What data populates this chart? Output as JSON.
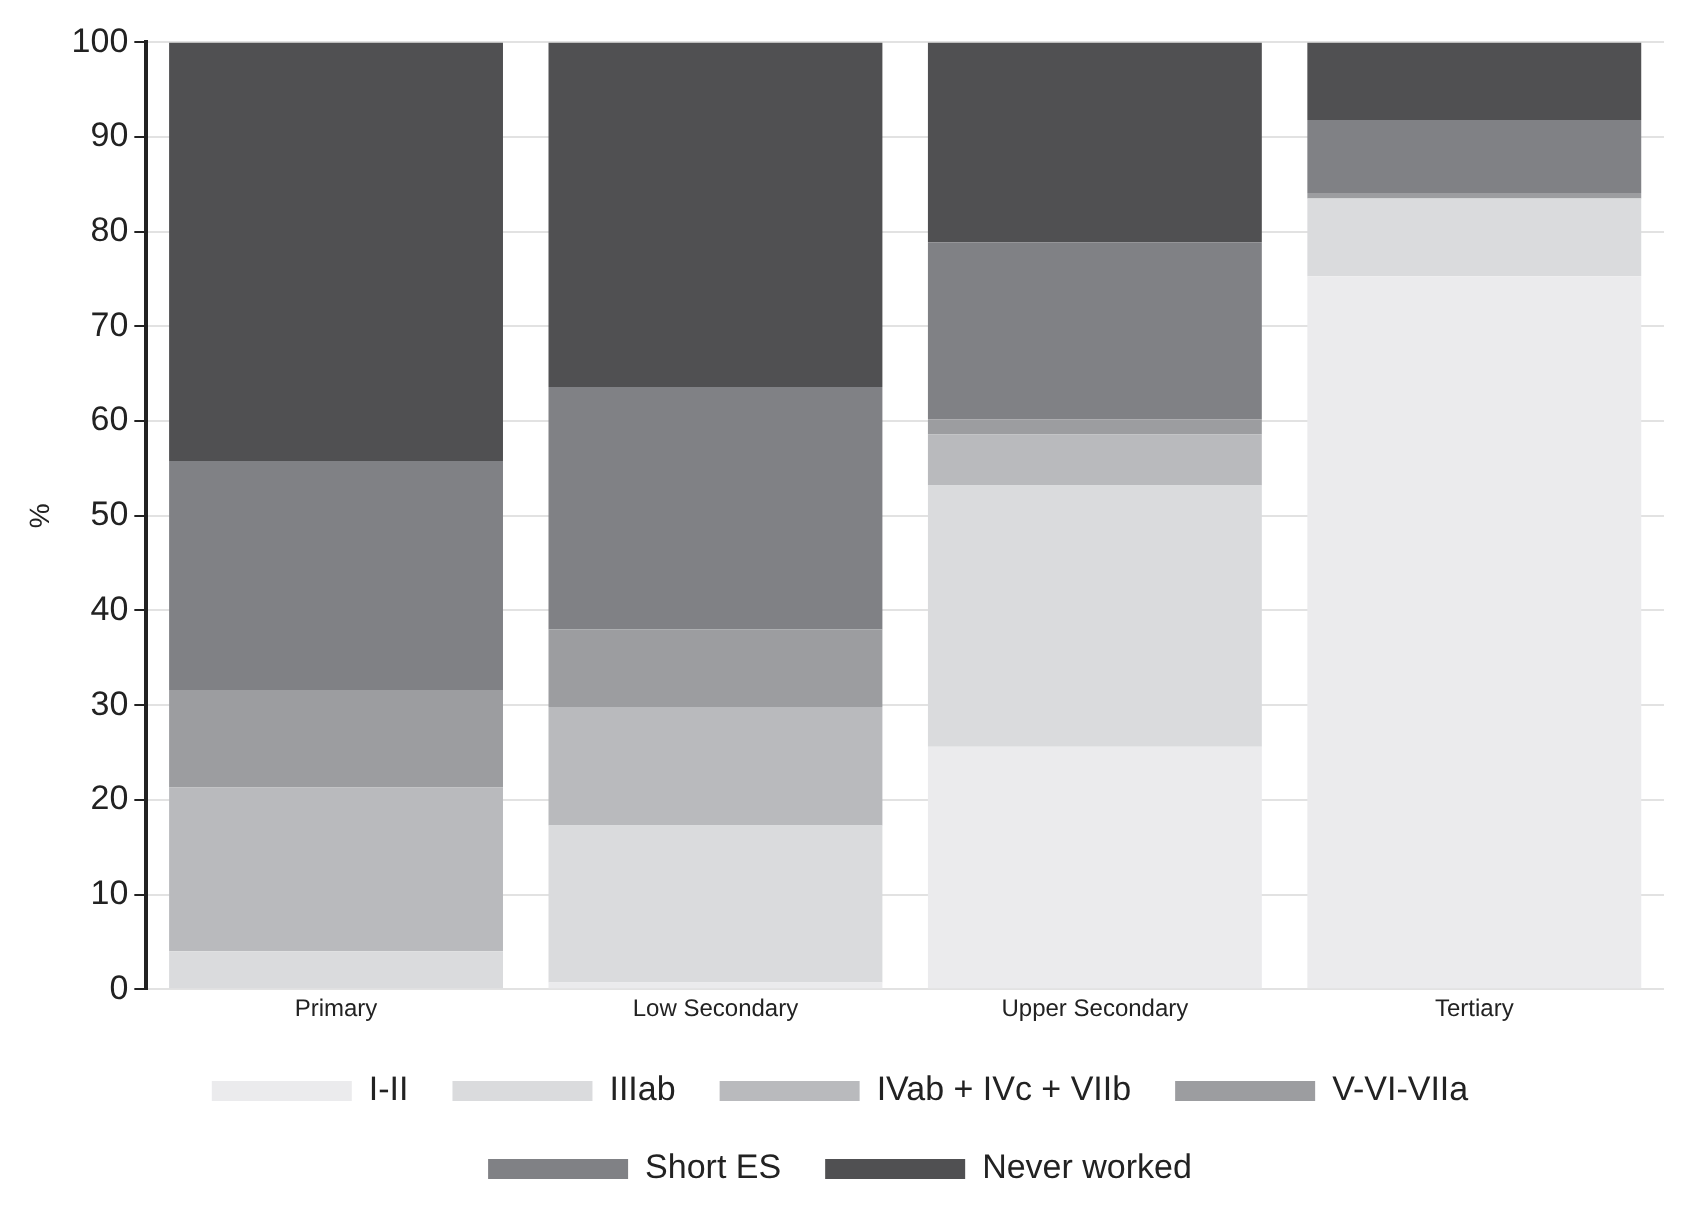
{
  "chart_data": {
    "type": "bar",
    "stacked": true,
    "ylabel": "%",
    "categories": [
      "Primary",
      "Low Secondary",
      "Upper Secondary",
      "Tertiary"
    ],
    "series": [
      {
        "name": "I-II",
        "color": "#ebebed",
        "values": [
          0,
          0.7,
          25.6,
          75.3
        ]
      },
      {
        "name": "IIIab",
        "color": "#dadbdd",
        "values": [
          4.0,
          16.6,
          27.6,
          8.2
        ]
      },
      {
        "name": "IVab + IVc + VIIb",
        "color": "#b9babd",
        "values": [
          17.3,
          12.5,
          5.4,
          0
        ]
      },
      {
        "name": "V-VI-VIIa",
        "color": "#9c9da0",
        "values": [
          10.3,
          8.2,
          1.6,
          0.6
        ]
      },
      {
        "name": "Short ES",
        "color": "#808185",
        "values": [
          24.2,
          25.6,
          18.7,
          7.7
        ]
      },
      {
        "name": "Never worked",
        "color": "#505052",
        "values": [
          44.2,
          36.4,
          21.1,
          8.2
        ]
      }
    ],
    "ylim": [
      0,
      100
    ],
    "yticks": [
      0,
      10,
      20,
      30,
      40,
      50,
      60,
      70,
      80,
      90,
      100
    ],
    "grid": "y",
    "legend": "bottom"
  }
}
